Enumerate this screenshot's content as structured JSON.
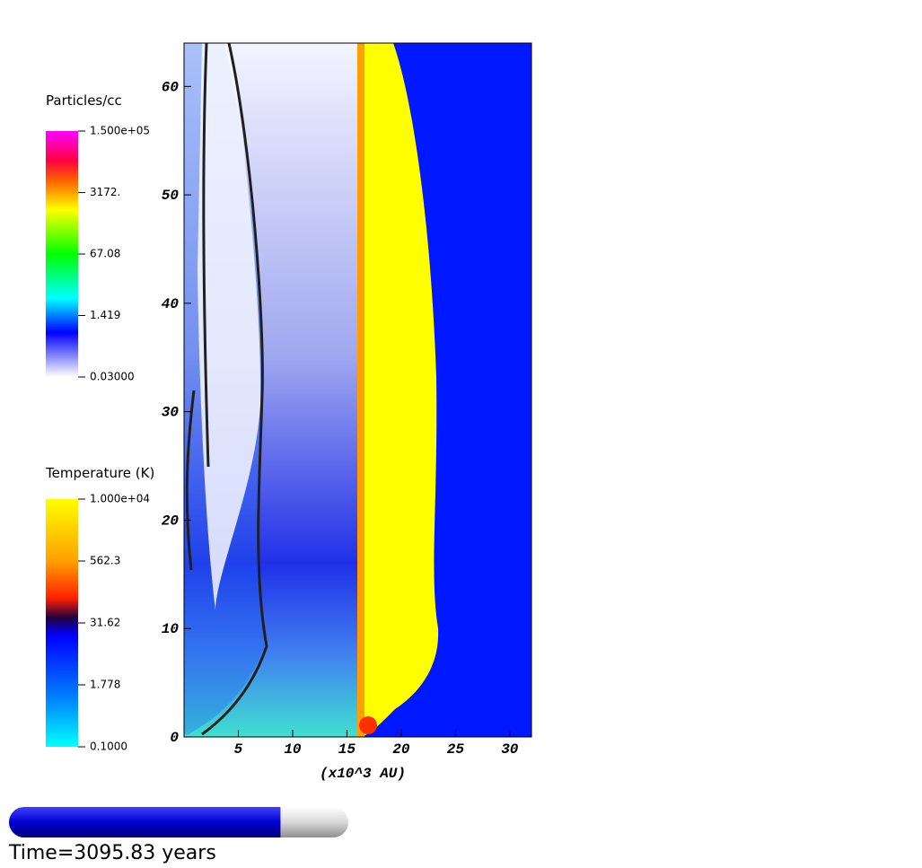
{
  "plot": {
    "xlabel": "(x10^3 AU)",
    "xlim": [
      0,
      32
    ],
    "xticks": [
      5,
      10,
      15,
      20,
      25,
      30
    ],
    "ylim": [
      0,
      64
    ],
    "yticks": [
      0,
      10,
      20,
      30,
      40,
      50,
      60
    ]
  },
  "legends": [
    {
      "title": "Particles/cc",
      "labels": [
        "1.500e+05",
        "3172.",
        "67.08",
        "1.419",
        "0.03000"
      ]
    },
    {
      "title": "Temperature (K)",
      "labels": [
        "1.000e+04",
        "562.3",
        "31.62",
        "1.778",
        "0.1000"
      ]
    }
  ],
  "time": {
    "label": "Time=3095.83 years",
    "progress": 0.8
  }
}
